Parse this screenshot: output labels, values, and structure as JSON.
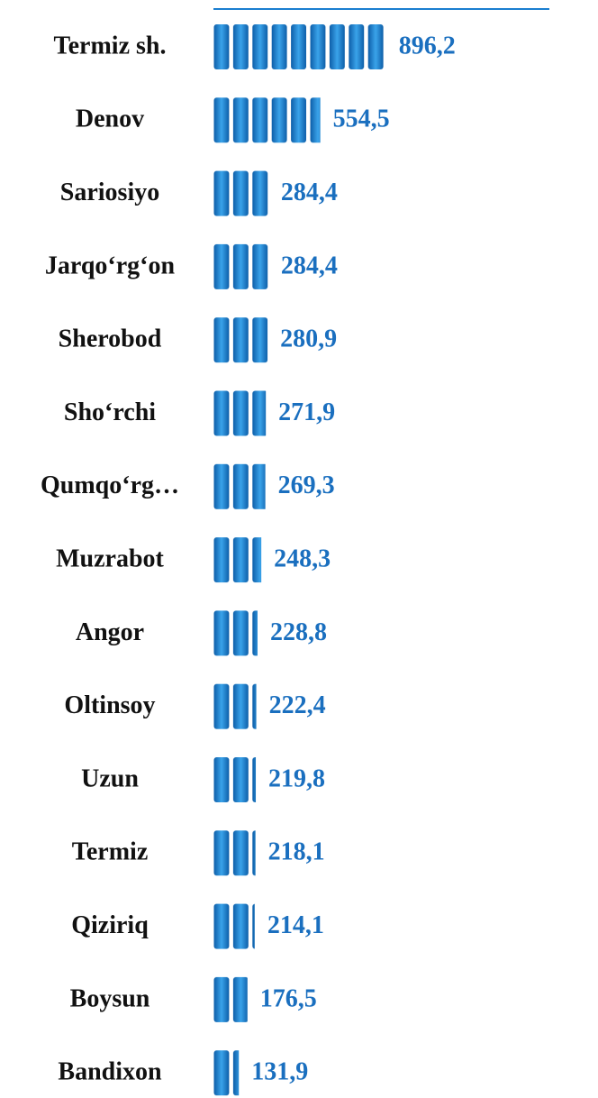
{
  "chart_data": {
    "type": "bar",
    "categories": [
      "Termiz sh.",
      "Denov",
      "Sariosiyo",
      "Jarqo‘rg‘on",
      "Sherobod",
      "Sho‘rchi",
      "Qumqo‘rg…",
      "Muzrabot",
      "Angor",
      "Oltinsoy",
      "Uzun",
      "Termiz",
      "Qiziriq",
      "Boysun",
      "Bandixon"
    ],
    "values": [
      896.2,
      554.5,
      284.4,
      284.4,
      280.9,
      271.9,
      269.3,
      248.3,
      228.8,
      222.4,
      219.8,
      218.1,
      214.1,
      176.5,
      131.9
    ],
    "value_labels": [
      "896,2",
      "554,5",
      "284,4",
      "284,4",
      "280,9",
      "271,9",
      "269,3",
      "248,3",
      "228,8",
      "222,4",
      "219,8",
      "218,1",
      "214,1",
      "176,5",
      "131,9"
    ],
    "color": "#1a7ed0"
  }
}
